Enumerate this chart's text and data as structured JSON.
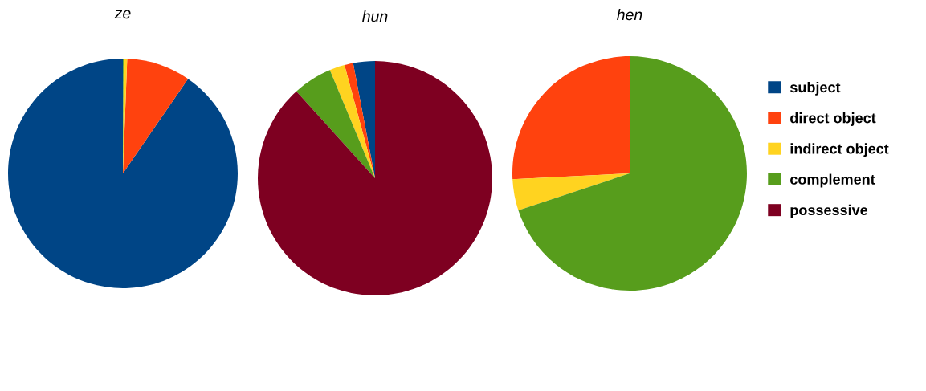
{
  "chart_data": [
    {
      "type": "pie",
      "title": "ze",
      "categories": [
        "subject",
        "direct object",
        "indirect object",
        "complement",
        "possessive"
      ],
      "values": [
        90.4,
        9.0,
        0.5,
        0.1,
        0
      ],
      "colors": [
        "#004586",
        "#ff420e",
        "#ffd320",
        "#579d1c",
        "#7e0021"
      ],
      "legend": "right"
    },
    {
      "type": "pie",
      "title": "hun",
      "values": [
        3.0,
        1.2,
        2.1,
        5.4,
        88.3
      ],
      "colors": [
        "#004586",
        "#ff420e",
        "#ffd320",
        "#579d1c",
        "#7e0021"
      ]
    },
    {
      "type": "pie",
      "title": "hen",
      "values": [
        0,
        25.8,
        4.3,
        69.9,
        0
      ],
      "colors": [
        "#004586",
        "#ff420e",
        "#ffd320",
        "#579d1c",
        "#7e0021"
      ]
    }
  ]
}
